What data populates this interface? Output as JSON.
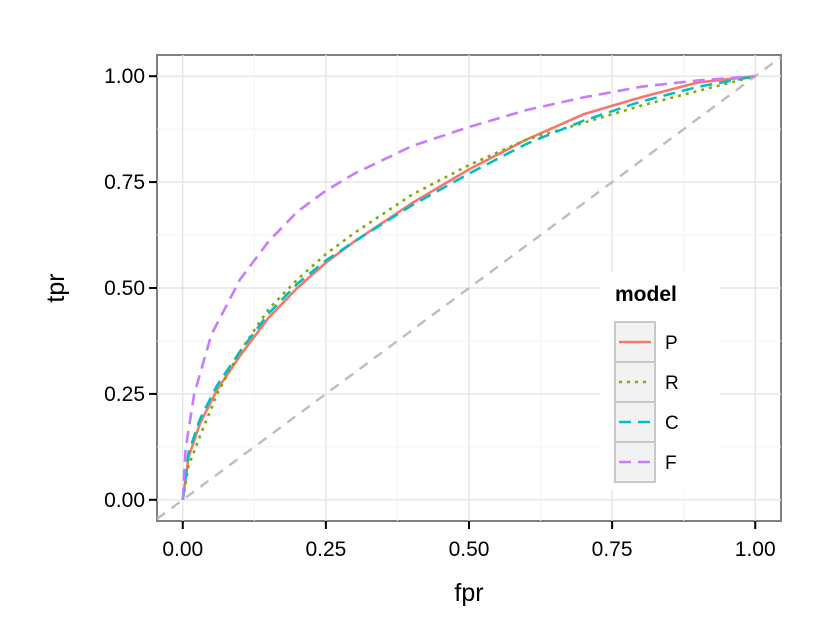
{
  "chart_data": {
    "type": "line",
    "xlabel": "fpr",
    "ylabel": "tpr",
    "xlim": [
      -0.045,
      1.045
    ],
    "ylim": [
      -0.05,
      1.05
    ],
    "x_ticks": [
      "0.00",
      "0.25",
      "0.50",
      "0.75",
      "1.00"
    ],
    "y_ticks": [
      "0.00",
      "0.25",
      "0.50",
      "0.75",
      "1.00"
    ],
    "grid": true,
    "legend": {
      "title": "model",
      "position": "right"
    },
    "reference_line": {
      "x": [
        0,
        1
      ],
      "y": [
        0,
        1
      ],
      "color": "#bdbdbd",
      "dash": "dashed"
    },
    "series": [
      {
        "name": "P",
        "color": "#F8766D",
        "dash": "solid",
        "x": [
          0,
          0.01,
          0.03,
          0.06,
          0.1,
          0.15,
          0.2,
          0.25,
          0.3,
          0.4,
          0.5,
          0.6,
          0.7,
          0.8,
          0.9,
          1.0
        ],
        "y": [
          0,
          0.1,
          0.18,
          0.26,
          0.34,
          0.43,
          0.5,
          0.56,
          0.61,
          0.7,
          0.78,
          0.85,
          0.91,
          0.95,
          0.985,
          1.0
        ]
      },
      {
        "name": "R",
        "color": "#7CAE00",
        "dash": "dotted",
        "x": [
          0,
          0.01,
          0.03,
          0.06,
          0.1,
          0.15,
          0.2,
          0.25,
          0.3,
          0.4,
          0.5,
          0.6,
          0.7,
          0.8,
          0.9,
          1.0
        ],
        "y": [
          0,
          0.08,
          0.15,
          0.25,
          0.35,
          0.45,
          0.52,
          0.58,
          0.63,
          0.72,
          0.79,
          0.85,
          0.89,
          0.93,
          0.965,
          1.0
        ]
      },
      {
        "name": "C",
        "color": "#00BFC4",
        "dash": "dashed",
        "x": [
          0,
          0.01,
          0.03,
          0.06,
          0.1,
          0.15,
          0.2,
          0.25,
          0.3,
          0.4,
          0.5,
          0.6,
          0.7,
          0.8,
          0.9,
          1.0
        ],
        "y": [
          0,
          0.11,
          0.19,
          0.27,
          0.35,
          0.44,
          0.51,
          0.565,
          0.61,
          0.695,
          0.77,
          0.84,
          0.895,
          0.94,
          0.975,
          1.0
        ]
      },
      {
        "name": "F",
        "color": "#C77CFF",
        "dash": "dashed",
        "x": [
          0,
          0.005,
          0.02,
          0.05,
          0.1,
          0.15,
          0.2,
          0.25,
          0.3,
          0.4,
          0.5,
          0.6,
          0.7,
          0.8,
          0.9,
          1.0
        ],
        "y": [
          0,
          0.12,
          0.25,
          0.39,
          0.52,
          0.61,
          0.68,
          0.73,
          0.77,
          0.835,
          0.88,
          0.92,
          0.95,
          0.975,
          0.99,
          1.0
        ]
      }
    ]
  }
}
